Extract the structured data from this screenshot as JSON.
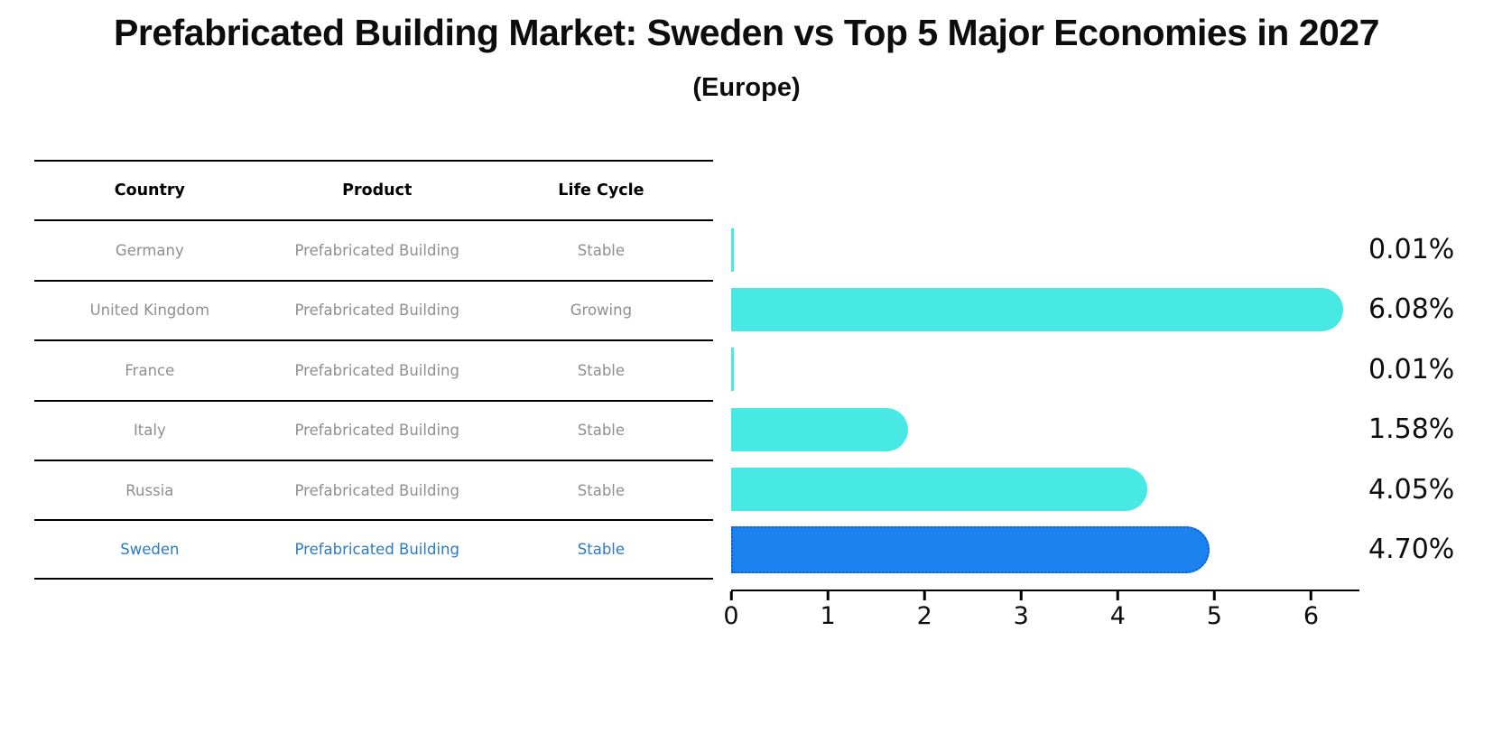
{
  "title": "Prefabricated Building Market: Sweden vs Top 5 Major Economies in 2027",
  "subtitle": "(Europe)",
  "table": {
    "headers": [
      "Country",
      "Product",
      "Life Cycle"
    ],
    "rows": [
      {
        "country": "Germany",
        "product": "Prefabricated Building",
        "life_cycle": "Stable",
        "highlight": false
      },
      {
        "country": "United Kingdom",
        "product": "Prefabricated Building",
        "life_cycle": "Growing",
        "highlight": false
      },
      {
        "country": "France",
        "product": "Prefabricated Building",
        "life_cycle": "Stable",
        "highlight": false
      },
      {
        "country": "Italy",
        "product": "Prefabricated Building",
        "life_cycle": "Stable",
        "highlight": false
      },
      {
        "country": "Russia",
        "product": "Prefabricated Building",
        "life_cycle": "Stable",
        "highlight": false
      },
      {
        "country": "Sweden",
        "product": "Prefabricated Building",
        "life_cycle": "Stable",
        "highlight": true
      }
    ]
  },
  "chart_data": {
    "type": "bar",
    "orientation": "horizontal",
    "title": "Prefabricated Building Market: Sweden vs Top 5 Major Economies in 2027 (Europe)",
    "categories": [
      "Germany",
      "United Kingdom",
      "France",
      "Italy",
      "Russia",
      "Sweden"
    ],
    "values": [
      0.01,
      6.08,
      0.01,
      1.58,
      4.05,
      4.7
    ],
    "value_labels": [
      "0.01%",
      "6.08%",
      "0.01%",
      "1.58%",
      "4.05%",
      "4.70%"
    ],
    "xlabel": "",
    "ylabel": "",
    "xlim": [
      0,
      6.5
    ],
    "xticks": [
      0,
      1,
      2,
      3,
      4,
      5,
      6
    ],
    "grid": false,
    "legend": null,
    "bar_color": "#48e9e4",
    "highlight_color": "#1b82f0",
    "highlight_border_color": "#0c5ed8",
    "highlight_category": "Sweden",
    "link_text_color": "#2b7bc4"
  }
}
